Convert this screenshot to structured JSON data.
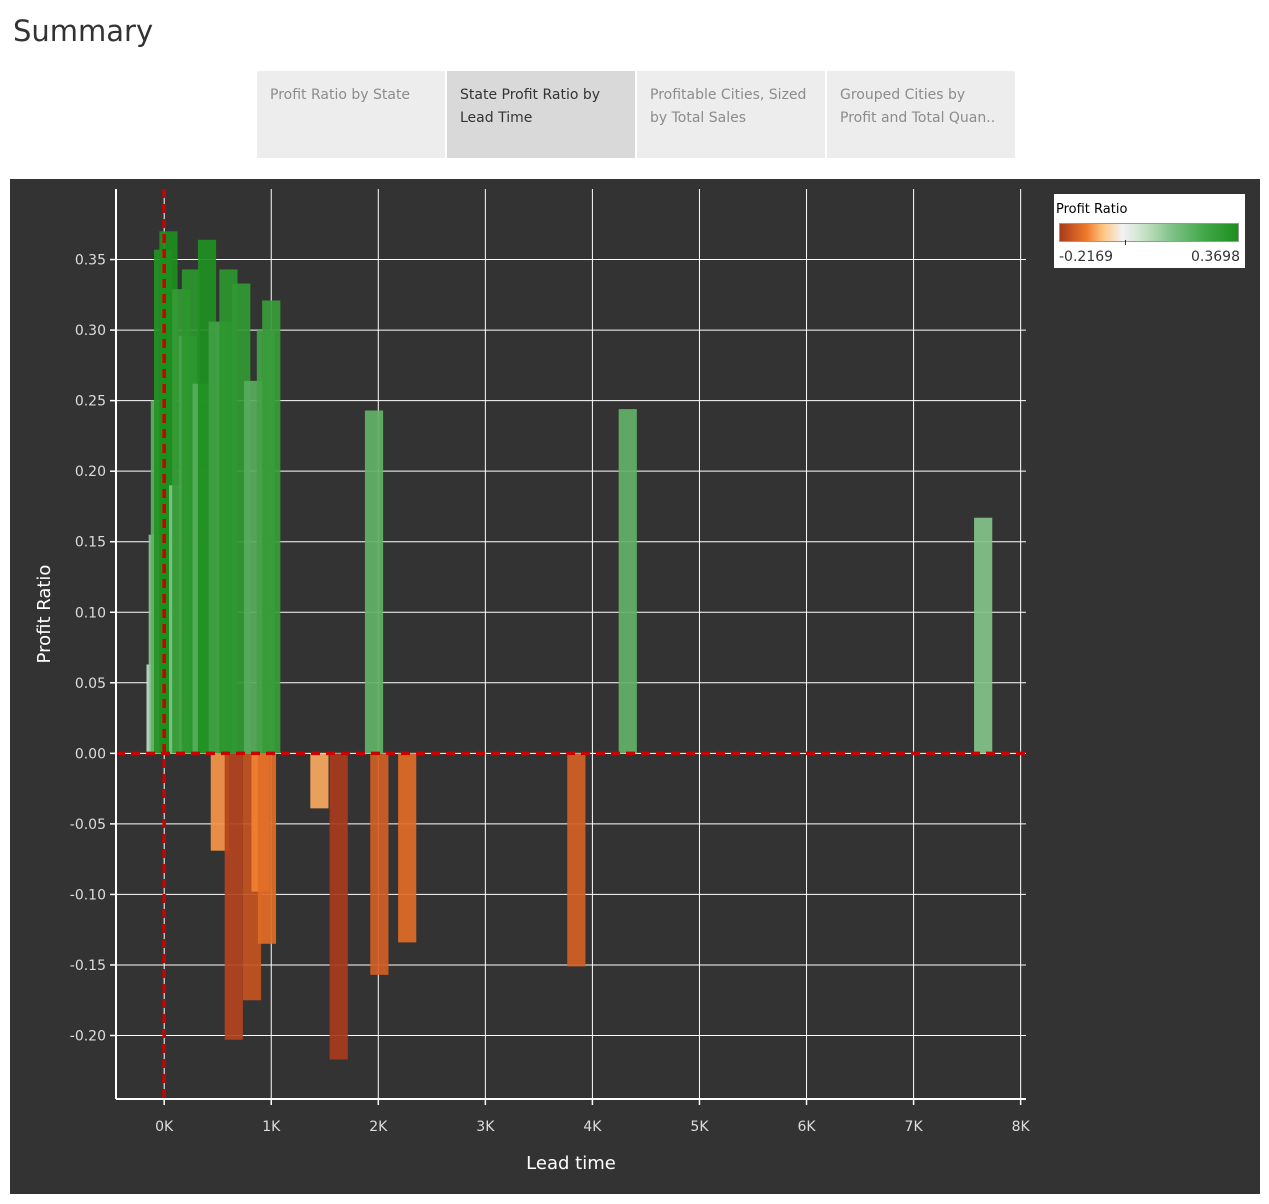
{
  "page": {
    "title": "Summary"
  },
  "tabs": [
    {
      "label_line1": "Profit Ratio by State",
      "label_line2": "",
      "active": false
    },
    {
      "label_line1": "State Profit Ratio by",
      "label_line2": "Lead Time",
      "active": true
    },
    {
      "label_line1": "Profitable Cities, Sized",
      "label_line2": "by Total Sales",
      "active": false
    },
    {
      "label_line1": "Grouped Cities by",
      "label_line2": "Profit and Total Quan..",
      "active": false
    }
  ],
  "legend": {
    "title": "Profit Ratio",
    "min_label": "-0.2169",
    "max_label": "0.3698",
    "colors": {
      "negative_dark": "#a93b1c",
      "negative_mid": "#f07a2a",
      "negative_light": "#ffc480",
      "neutral": "#f2f2f2",
      "positive_light": "#83c38a",
      "positive_dark": "#1d8e1d"
    }
  },
  "chart_data": {
    "type": "bar",
    "title": "",
    "xlabel": "Lead time",
    "ylabel": "Profit Ratio",
    "xlim": [
      -450,
      8050
    ],
    "ylim": [
      -0.245,
      0.4
    ],
    "x_ticks": [
      0,
      1000,
      2000,
      3000,
      4000,
      5000,
      6000,
      7000,
      8000
    ],
    "x_tick_labels": [
      "0K",
      "1K",
      "2K",
      "3K",
      "4K",
      "5K",
      "6K",
      "7K",
      "8K"
    ],
    "y_ticks": [
      0.35,
      0.3,
      0.25,
      0.2,
      0.15,
      0.1,
      0.05,
      0.0,
      -0.05,
      -0.1,
      -0.15,
      -0.2
    ],
    "y_tick_labels": [
      "0.35",
      "0.30",
      "0.25",
      "0.20",
      "0.15",
      "0.10",
      "0.05",
      "0.00",
      "-0.05",
      "-0.10",
      "-0.15",
      "-0.20"
    ],
    "grid": true,
    "reference_lines": {
      "x": 0,
      "y": 0,
      "color": "#cc0000",
      "style": "dashed"
    },
    "bar_width": 170,
    "legend_position": "top-right",
    "points": [
      {
        "x": -80,
        "y": 0.063
      },
      {
        "x": -60,
        "y": 0.155
      },
      {
        "x": -40,
        "y": 0.25
      },
      {
        "x": -10,
        "y": 0.357
      },
      {
        "x": 40,
        "y": 0.37
      },
      {
        "x": 130,
        "y": 0.19
      },
      {
        "x": 160,
        "y": 0.329
      },
      {
        "x": 220,
        "y": 0.296
      },
      {
        "x": 250,
        "y": 0.343
      },
      {
        "x": 350,
        "y": 0.262
      },
      {
        "x": 400,
        "y": 0.364
      },
      {
        "x": 500,
        "y": 0.306
      },
      {
        "x": 520,
        "y": -0.069
      },
      {
        "x": 570,
        "y": 0.306
      },
      {
        "x": 600,
        "y": 0.343
      },
      {
        "x": 650,
        "y": -0.203
      },
      {
        "x": 720,
        "y": 0.333
      },
      {
        "x": 820,
        "y": -0.175
      },
      {
        "x": 830,
        "y": 0.264
      },
      {
        "x": 900,
        "y": -0.098
      },
      {
        "x": 950,
        "y": 0.3
      },
      {
        "x": 960,
        "y": -0.135
      },
      {
        "x": 1000,
        "y": 0.321
      },
      {
        "x": 1450,
        "y": -0.039
      },
      {
        "x": 1630,
        "y": -0.217
      },
      {
        "x": 1960,
        "y": 0.243
      },
      {
        "x": 2010,
        "y": -0.157
      },
      {
        "x": 2270,
        "y": -0.134
      },
      {
        "x": 3850,
        "y": -0.151
      },
      {
        "x": 4330,
        "y": 0.244
      },
      {
        "x": 7650,
        "y": 0.167
      }
    ]
  }
}
